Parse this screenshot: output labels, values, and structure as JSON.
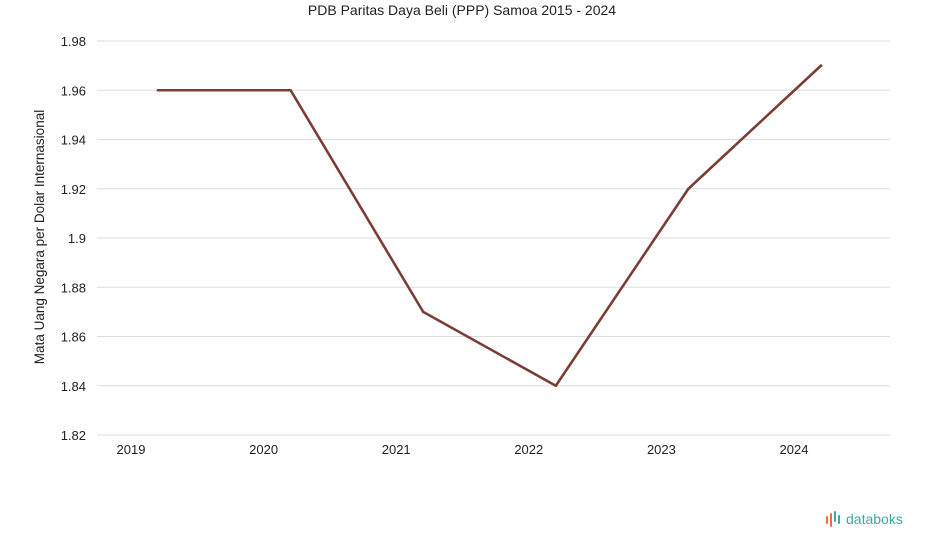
{
  "chart_data": {
    "type": "line",
    "title": "PDB Paritas Daya Beli (PPP) Samoa 2015 - 2024",
    "xlabel": "",
    "ylabel": "Mata Uang Negara per Dolar Internasional",
    "categories": [
      "2019",
      "2020",
      "2021",
      "2022",
      "2023",
      "2024"
    ],
    "series": [
      {
        "values": [
          1.96,
          1.96,
          1.87,
          1.84,
          1.92,
          1.97
        ]
      }
    ],
    "ylim": [
      1.82,
      1.98
    ],
    "yticks": [
      1.82,
      1.84,
      1.86,
      1.88,
      1.9,
      1.92,
      1.94,
      1.96,
      1.98
    ],
    "grid": true,
    "line_color": "#7a3e36"
  },
  "branding": {
    "logo_text": "databoks",
    "logo_icon": "databoks-bars-icon",
    "color_orange": "#f26a3d",
    "color_teal": "#3aa9a4"
  }
}
